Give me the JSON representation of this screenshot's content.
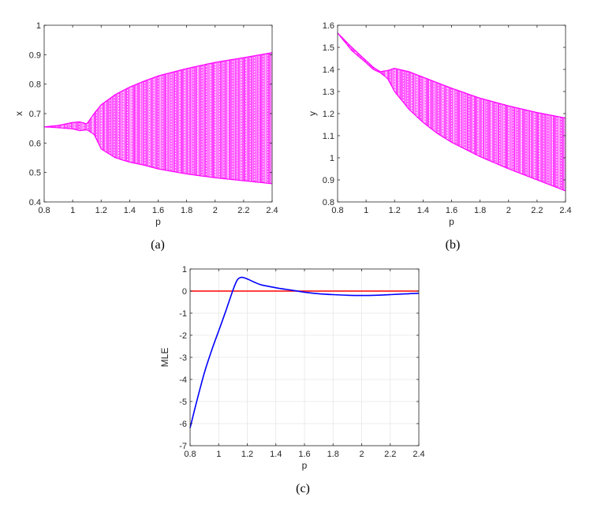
{
  "chart_data": [
    {
      "type": "scatter",
      "caption": "(a)",
      "xlabel": "p",
      "ylabel": "x",
      "xlim": [
        0.8,
        2.4
      ],
      "ylim": [
        0.4,
        1.0
      ],
      "xticks": [
        "0.8",
        "1",
        "1.2",
        "1.4",
        "1.6",
        "1.8",
        "2",
        "2.2",
        "2.4"
      ],
      "yticks": [
        "0.4",
        "0.5",
        "0.6",
        "0.7",
        "0.8",
        "0.9",
        "1"
      ],
      "grid": false,
      "color": "#ff00ff",
      "envelope_p": [
        0.8,
        0.9,
        1.0,
        1.05,
        1.1,
        1.15,
        1.2,
        1.3,
        1.4,
        1.5,
        1.6,
        1.8,
        2.0,
        2.2,
        2.4
      ],
      "upper": [
        0.655,
        0.66,
        0.67,
        0.672,
        0.665,
        0.7,
        0.73,
        0.765,
        0.79,
        0.81,
        0.828,
        0.853,
        0.874,
        0.89,
        0.907
      ],
      "lower": [
        0.655,
        0.652,
        0.648,
        0.642,
        0.645,
        0.63,
        0.58,
        0.55,
        0.535,
        0.525,
        0.512,
        0.495,
        0.482,
        0.472,
        0.462
      ]
    },
    {
      "type": "scatter",
      "caption": "(b)",
      "xlabel": "p",
      "ylabel": "y",
      "xlim": [
        0.8,
        2.4
      ],
      "ylim": [
        0.8,
        1.6
      ],
      "xticks": [
        "0.8",
        "1",
        "1.2",
        "1.4",
        "1.6",
        "1.8",
        "2",
        "2.2",
        "2.4"
      ],
      "yticks": [
        "0.8",
        "0.9",
        "1",
        "1.1",
        "1.2",
        "1.3",
        "1.4",
        "1.5",
        "1.6"
      ],
      "grid": false,
      "color": "#ff00ff",
      "envelope_p": [
        0.8,
        0.9,
        1.0,
        1.05,
        1.1,
        1.15,
        1.2,
        1.3,
        1.4,
        1.5,
        1.6,
        1.8,
        2.0,
        2.2,
        2.4
      ],
      "upper": [
        1.565,
        1.5,
        1.44,
        1.41,
        1.39,
        1.395,
        1.405,
        1.39,
        1.365,
        1.34,
        1.315,
        1.27,
        1.235,
        1.205,
        1.18
      ],
      "lower": [
        1.565,
        1.485,
        1.43,
        1.4,
        1.385,
        1.36,
        1.3,
        1.22,
        1.16,
        1.11,
        1.07,
        1.005,
        0.95,
        0.9,
        0.85
      ]
    },
    {
      "type": "line",
      "caption": "(c)",
      "xlabel": "p",
      "ylabel": "MLE",
      "xlim": [
        0.8,
        2.4
      ],
      "ylim": [
        -7,
        1
      ],
      "xticks": [
        "0.8",
        "1",
        "1.2",
        "1.4",
        "1.6",
        "1.8",
        "2",
        "2.2",
        "2.4"
      ],
      "yticks": [
        "-7",
        "-6",
        "-5",
        "-4",
        "-3",
        "-2",
        "-1",
        "0",
        "1"
      ],
      "grid": true,
      "series": [
        {
          "color": "#0000ff",
          "x": [
            0.8,
            0.85,
            0.9,
            0.95,
            1.0,
            1.05,
            1.1,
            1.13,
            1.16,
            1.2,
            1.25,
            1.3,
            1.4,
            1.5,
            1.6,
            1.7,
            1.8,
            1.9,
            2.0,
            2.1,
            2.2,
            2.3,
            2.4
          ],
          "y": [
            -6.2,
            -4.9,
            -3.7,
            -2.7,
            -1.8,
            -0.9,
            0.05,
            0.5,
            0.62,
            0.55,
            0.4,
            0.28,
            0.15,
            0.05,
            -0.05,
            -0.12,
            -0.16,
            -0.19,
            -0.2,
            -0.19,
            -0.16,
            -0.13,
            -0.1
          ]
        }
      ],
      "reference_line": {
        "y": 0,
        "color": "#ff0000"
      }
    }
  ]
}
